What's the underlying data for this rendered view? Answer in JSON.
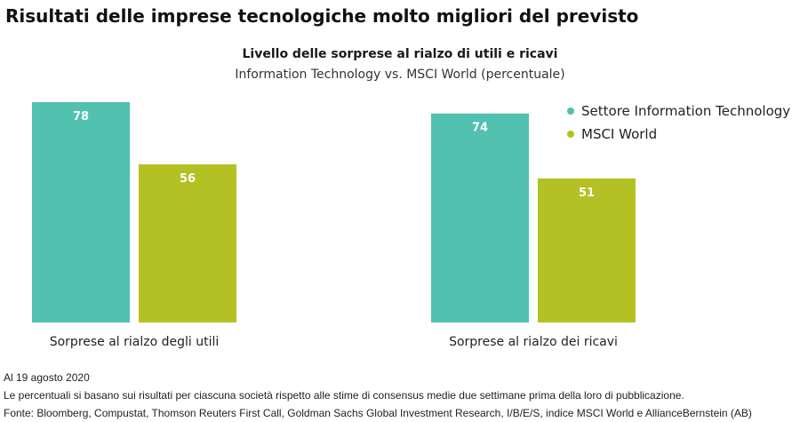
{
  "headline": "Risultati delle imprese tecnologiche molto migliori del previsto",
  "colors": {
    "it": "#52c1b0",
    "msci": "#b4c124",
    "label_text": "#ffffff"
  },
  "chart_data": {
    "type": "bar",
    "title": "Livello delle sorprese al rialzo di utili e ricavi",
    "subtitle": "Information Technology vs. MSCI World (percentuale)",
    "categories": [
      "Sorprese al rialzo degli utili",
      "Sorprese al rialzo dei ricavi"
    ],
    "series": [
      {
        "name": "Settore Information Technology",
        "values": [
          78,
          74
        ],
        "color": "#52c1b0"
      },
      {
        "name": "MSCI World",
        "values": [
          56,
          51
        ],
        "color": "#b4c124"
      }
    ],
    "ylim": [
      0,
      78
    ],
    "legend_position": "top-right",
    "grid": false
  },
  "notes": {
    "date": "Al 19 agosto 2020",
    "methodology": "Le percentuali si basano sui risultati per ciascuna società rispetto alle stime di consensus medie due settimane prima della loro di pubblicazione.",
    "source": "Fonte: Bloomberg, Compustat, Thomson Reuters First Call, Goldman Sachs Global Investment Research, I/B/E/S, indice MSCI World e AllianceBernstein (AB)"
  }
}
